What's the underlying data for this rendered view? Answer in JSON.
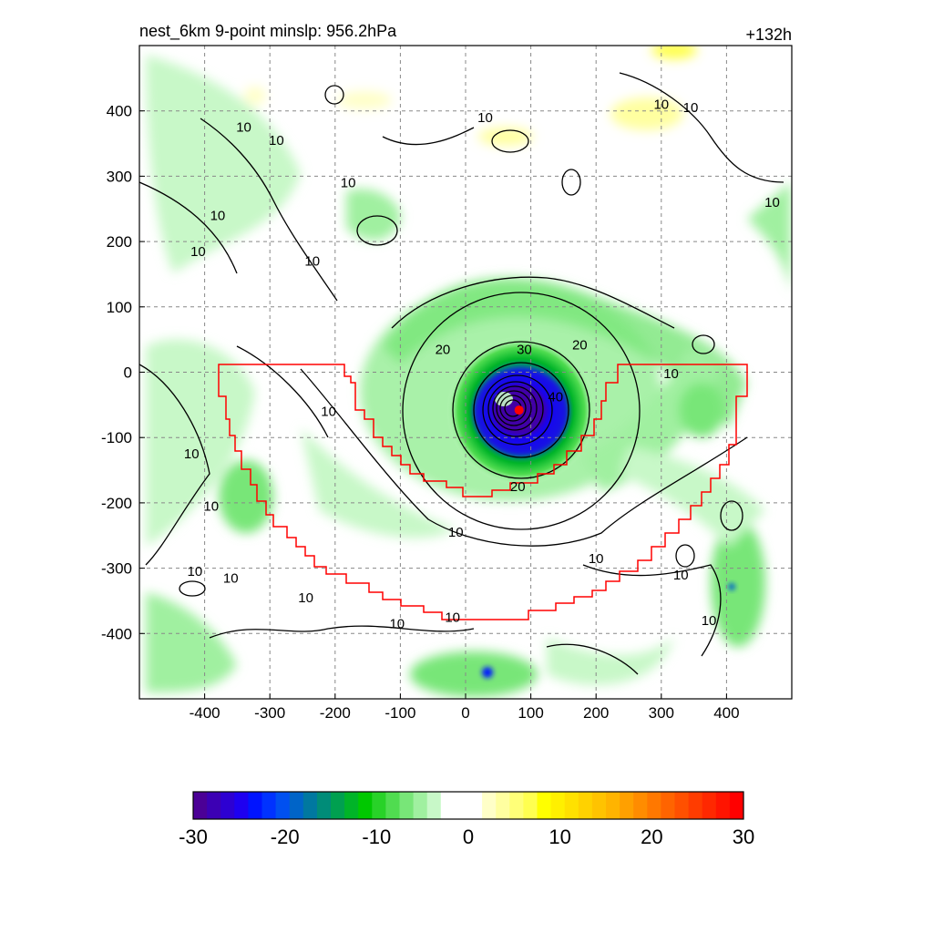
{
  "chart_data": {
    "type": "heatmap",
    "title_left": "nest_6km  9-point minslp: 956.2hPa",
    "title_right": "+132h",
    "xlim": [
      -500,
      500
    ],
    "ylim": [
      -500,
      500
    ],
    "x_ticks": [
      -400,
      -300,
      -200,
      -100,
      0,
      100,
      200,
      300,
      400
    ],
    "y_ticks": [
      400,
      300,
      200,
      100,
      0,
      -100,
      -200,
      -300,
      -400
    ],
    "x_tick_labels": [
      "-400",
      "-300",
      "-200",
      "-100",
      "0",
      "100",
      "200",
      "300",
      "400"
    ],
    "y_tick_labels": [
      "400",
      "300",
      "200",
      "100",
      "0",
      "-100",
      "-200",
      "-300",
      "-400"
    ],
    "grid": true,
    "colorbar": {
      "range": [
        -30,
        30
      ],
      "ticks": [
        -30,
        -20,
        -10,
        0,
        10,
        20,
        30
      ],
      "tick_labels": [
        "-30",
        "-20",
        "-10",
        "0",
        "10",
        "20",
        "30"
      ],
      "colors": [
        "#4b0096",
        "#3c00b4",
        "#2d00d2",
        "#1e00f0",
        "#0014ff",
        "#0032ff",
        "#0050f0",
        "#0064c8",
        "#0078a0",
        "#008c78",
        "#00a050",
        "#00b428",
        "#00c800",
        "#28d228",
        "#50dc50",
        "#78e678",
        "#a0f0a0",
        "#c8f8c8",
        "#ffffff",
        "#ffffff",
        "#ffffff",
        "#ffffc8",
        "#ffffa0",
        "#ffff78",
        "#ffff50",
        "#ffff00",
        "#fff000",
        "#ffe100",
        "#ffd200",
        "#ffc300",
        "#ffb400",
        "#ffa000",
        "#ff8c00",
        "#ff7800",
        "#ff6400",
        "#ff5000",
        "#ff3c00",
        "#ff2800",
        "#ff1400",
        "#ff0000"
      ]
    },
    "storm_center": {
      "x": 82,
      "y": -58
    },
    "wind_contours": [
      {
        "level": 10,
        "label": "10"
      },
      {
        "level": 20,
        "label": "20"
      },
      {
        "level": 30,
        "label": "30"
      },
      {
        "level": 40,
        "label": "40"
      }
    ],
    "contour_labels": [
      {
        "text": "10",
        "x": 30,
        "y": 390
      },
      {
        "text": "10",
        "x": -340,
        "y": 375
      },
      {
        "text": "10",
        "x": -290,
        "y": 355
      },
      {
        "text": "10",
        "x": -180,
        "y": 290
      },
      {
        "text": "10",
        "x": -380,
        "y": 240
      },
      {
        "text": "10",
        "x": -410,
        "y": 185
      },
      {
        "text": "10",
        "x": -235,
        "y": 170
      },
      {
        "text": "10",
        "x": 300,
        "y": 410
      },
      {
        "text": "10",
        "x": 345,
        "y": 405
      },
      {
        "text": "10",
        "x": 470,
        "y": 260
      },
      {
        "text": "10",
        "x": -210,
        "y": -60
      },
      {
        "text": "10",
        "x": -420,
        "y": -125
      },
      {
        "text": "10",
        "x": -390,
        "y": -205
      },
      {
        "text": "10",
        "x": -15,
        "y": -245
      },
      {
        "text": "10",
        "x": -415,
        "y": -305
      },
      {
        "text": "10",
        "x": -360,
        "y": -315
      },
      {
        "text": "10",
        "x": -245,
        "y": -345
      },
      {
        "text": "10",
        "x": 200,
        "y": -285
      },
      {
        "text": "10",
        "x": 330,
        "y": -310
      },
      {
        "text": "10",
        "x": 373,
        "y": -380
      },
      {
        "text": "10",
        "x": -105,
        "y": -385
      },
      {
        "text": "10",
        "x": -20,
        "y": -375
      },
      {
        "text": "10",
        "x": 315,
        "y": -2
      },
      {
        "text": "20",
        "x": -35,
        "y": 35
      },
      {
        "text": "20",
        "x": 175,
        "y": 42
      },
      {
        "text": "20",
        "x": 80,
        "y": -175
      },
      {
        "text": "30",
        "x": 90,
        "y": 35
      },
      {
        "text": "40",
        "x": 138,
        "y": -38
      }
    ]
  }
}
